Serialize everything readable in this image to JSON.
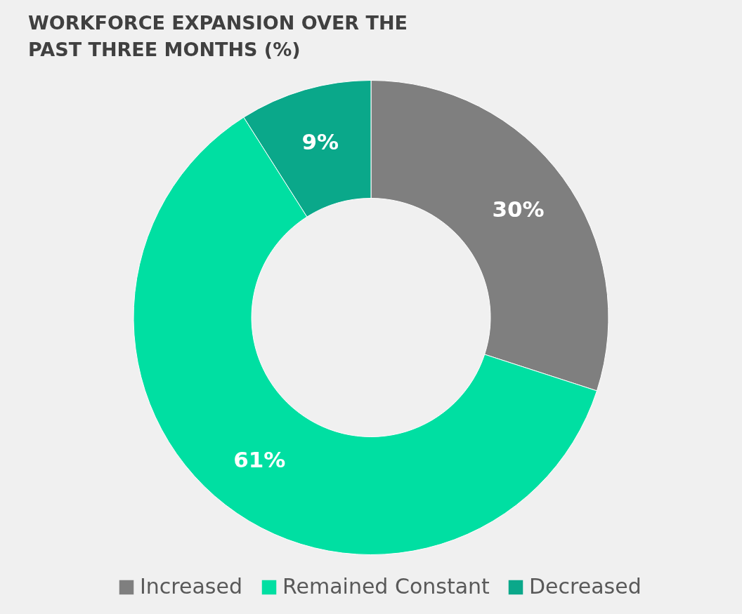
{
  "chart_data": {
    "type": "donut",
    "title": "WORKFORCE EXPANSION OVER THE PAST THREE MONTHS (%)",
    "categories": [
      "Increased",
      "Remained Constant",
      "Decreased"
    ],
    "values": [
      30,
      61,
      9
    ],
    "colors": [
      "#7f7f7f",
      "#00dfa2",
      "#0aa88a"
    ],
    "value_labels": [
      "30%",
      "61%",
      "9%"
    ],
    "legend": "bottom"
  }
}
